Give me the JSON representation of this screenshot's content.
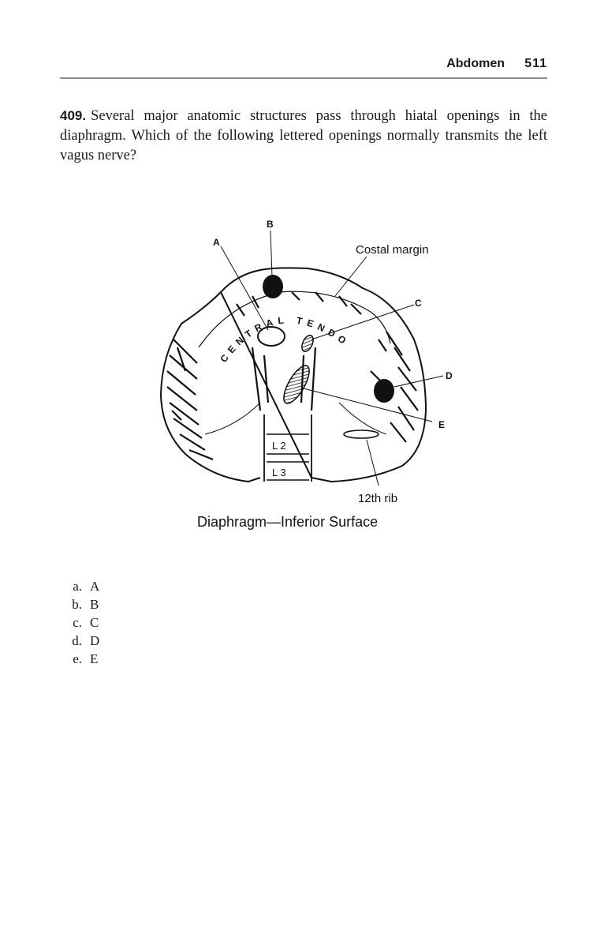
{
  "header": {
    "section": "Abdomen",
    "page_number": "511"
  },
  "question": {
    "number": "409.",
    "text": "Several major anatomic structures pass through hiatal openings in the diaphragm. Which of the following lettered openings normally transmits the left vagus nerve?"
  },
  "figure": {
    "labels": {
      "a": "A",
      "b": "B",
      "c": "C",
      "d": "D",
      "e": "E",
      "costal_margin": "Costal margin",
      "central_tendon": "CENTRAL TENDON",
      "l2": "L 2",
      "l3": "L 3",
      "rib": "12th rib",
      "caption": "Diaphragm—Inferior Surface"
    }
  },
  "options": [
    {
      "letter": "a.",
      "text": "A"
    },
    {
      "letter": "b.",
      "text": "B"
    },
    {
      "letter": "c.",
      "text": "C"
    },
    {
      "letter": "d.",
      "text": "D"
    },
    {
      "letter": "e.",
      "text": "E"
    }
  ]
}
